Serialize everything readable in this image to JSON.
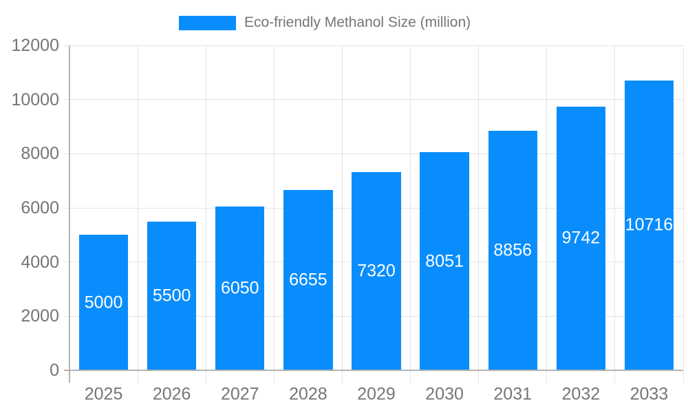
{
  "chart_data": {
    "type": "bar",
    "title": "",
    "legend": "Eco-friendly Methanol Size (million)",
    "categories": [
      "2025",
      "2026",
      "2027",
      "2028",
      "2029",
      "2030",
      "2031",
      "2032",
      "2033"
    ],
    "series": [
      {
        "name": "Eco-friendly Methanol Size (million)",
        "values": [
          5000,
          5500,
          6050,
          6655,
          7320,
          8051,
          8856,
          9742,
          10716
        ]
      }
    ],
    "xlabel": "",
    "ylabel": "",
    "ylim": [
      0,
      12000
    ],
    "yticks": [
      0,
      2000,
      4000,
      6000,
      8000,
      10000,
      12000
    ],
    "grid": true,
    "legend_position": "top-center",
    "bar_labels_shown": true
  },
  "colors": {
    "background": "#ffffff",
    "bar": "#0a8dfc",
    "grid_line": "#e4e4e4",
    "axis_line": "#b3b3b3",
    "tick_text": "#757575",
    "bar_label": "#ffffff"
  }
}
